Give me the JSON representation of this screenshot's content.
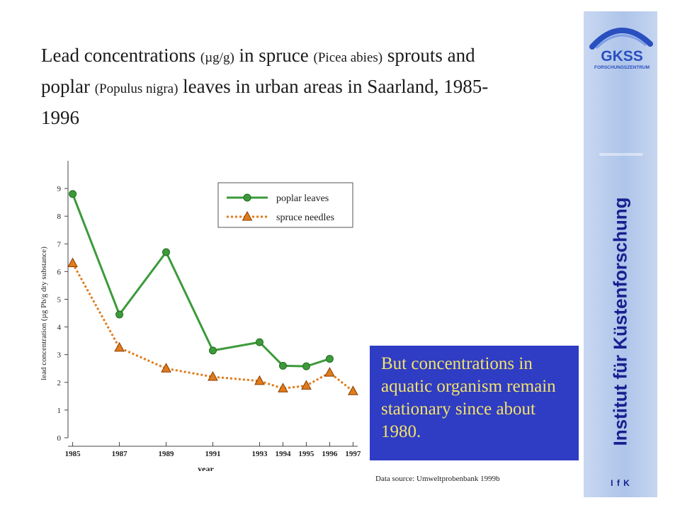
{
  "title": {
    "part1": "Lead concentrations ",
    "unit": "(µg/g)",
    "part2": " in spruce ",
    "species1": "(Picea abies)",
    "part3": " sprouts and poplar ",
    "species2": "(Populus nigra)",
    "part4": " leaves in urban areas in Saarland, 1985-1996"
  },
  "callout": {
    "text": "But concentrations in aquatic organism remain stationary since about 1980."
  },
  "source": "Data source: Umweltprobenbank 1999b",
  "sidebar": {
    "institute": "Institut für Küstenforschung",
    "abbr": "I f K",
    "logo_main": "GKSS",
    "logo_sub": "FORSCHUNGSZENTRUM"
  },
  "colors": {
    "poplar": "#3c9a3a",
    "spruce": "#e07b1c",
    "callout_bg": "#2f3cc4",
    "callout_text": "#f2e26a",
    "institute_text": "#17208f"
  },
  "chart_data": {
    "type": "line",
    "xlabel": "year",
    "ylabel": "lead concentration (µg Pb/g dry substance)",
    "ylim": [
      0,
      10
    ],
    "yticks": [
      0,
      1,
      2,
      3,
      4,
      5,
      6,
      7,
      8,
      9
    ],
    "xlim": [
      1984.8,
      1997.2
    ],
    "xticks": [
      1985,
      1987,
      1989,
      1991,
      1993,
      1994,
      1995,
      1996,
      1997
    ],
    "legend_position": "top-right",
    "series": [
      {
        "name": "poplar leaves",
        "marker": "circle",
        "style": "solid",
        "x": [
          1985,
          1987,
          1989,
          1991,
          1993,
          1994,
          1995,
          1996
        ],
        "y": [
          8.8,
          4.45,
          6.7,
          3.15,
          3.45,
          2.6,
          2.58,
          2.85
        ]
      },
      {
        "name": "spruce needles",
        "marker": "triangle",
        "style": "dotted",
        "x": [
          1985,
          1987,
          1989,
          1991,
          1993,
          1994,
          1995,
          1996,
          1997
        ],
        "y": [
          6.3,
          3.25,
          2.5,
          2.2,
          2.05,
          1.78,
          1.88,
          2.35,
          1.68
        ]
      }
    ]
  }
}
